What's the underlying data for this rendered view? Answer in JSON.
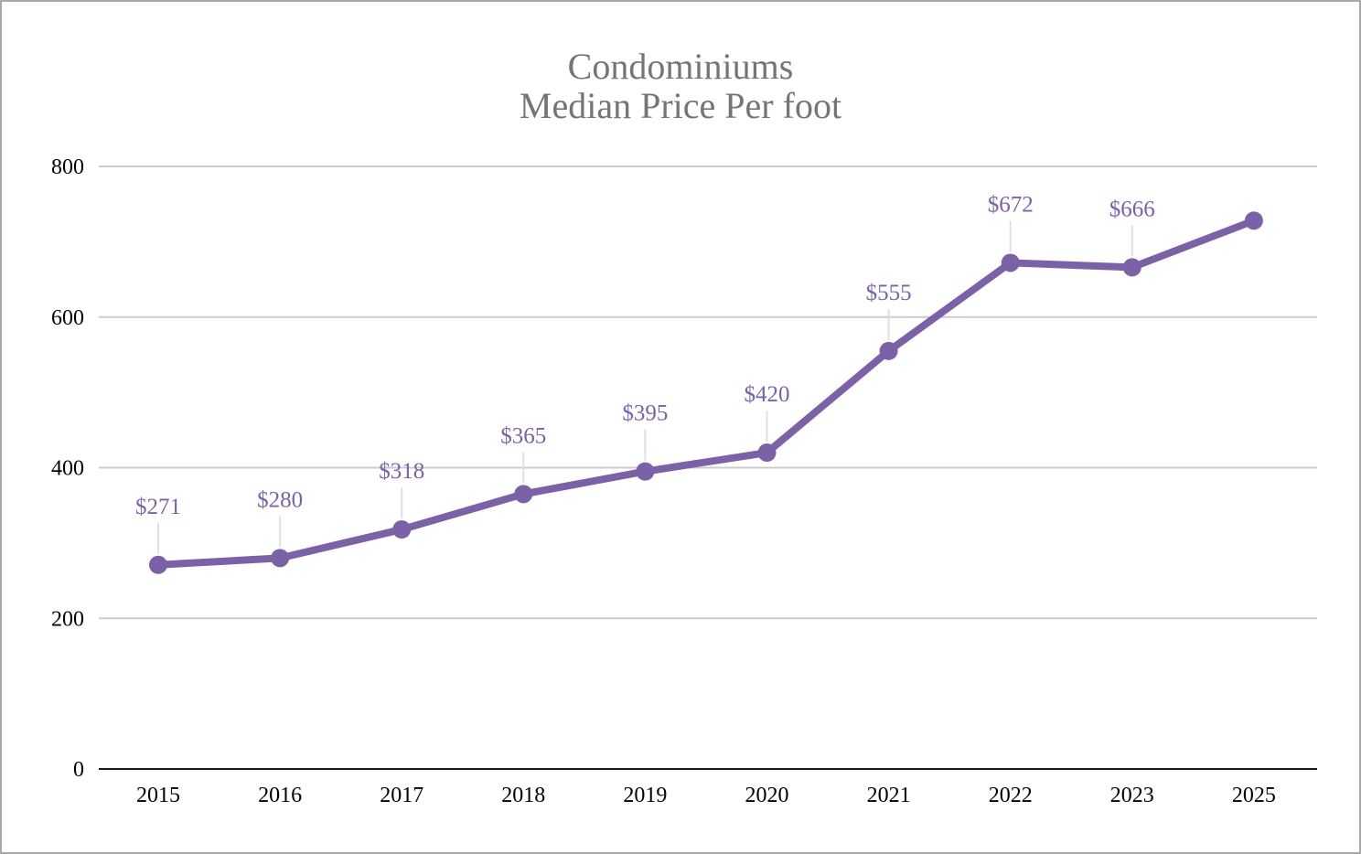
{
  "chart_data": {
    "type": "line",
    "title": "Condominiums",
    "subtitle": "Median Price Per foot",
    "xlabel": "",
    "ylabel": "",
    "categories": [
      "2015",
      "2016",
      "2017",
      "2018",
      "2019",
      "2020",
      "2021",
      "2022",
      "2023",
      "2025"
    ],
    "series": [
      {
        "values": [
          271,
          280,
          318,
          365,
          395,
          420,
          555,
          672,
          666,
          728
        ]
      }
    ],
    "data_labels": [
      "$271",
      "$280",
      "$318",
      "$365",
      "$395",
      "$420",
      "$555",
      "$672",
      "$666",
      ""
    ],
    "ylim": [
      0,
      800
    ],
    "yticks": [
      "0",
      "200",
      "400",
      "600",
      "800"
    ],
    "grid": true,
    "legend": "none",
    "colors": {
      "line": "#7b62a6",
      "label": "#7b62a6",
      "grid": "#cccccc",
      "axis": "#1a1a1a",
      "leader": "#e0e0e0",
      "title": "#757575"
    }
  }
}
